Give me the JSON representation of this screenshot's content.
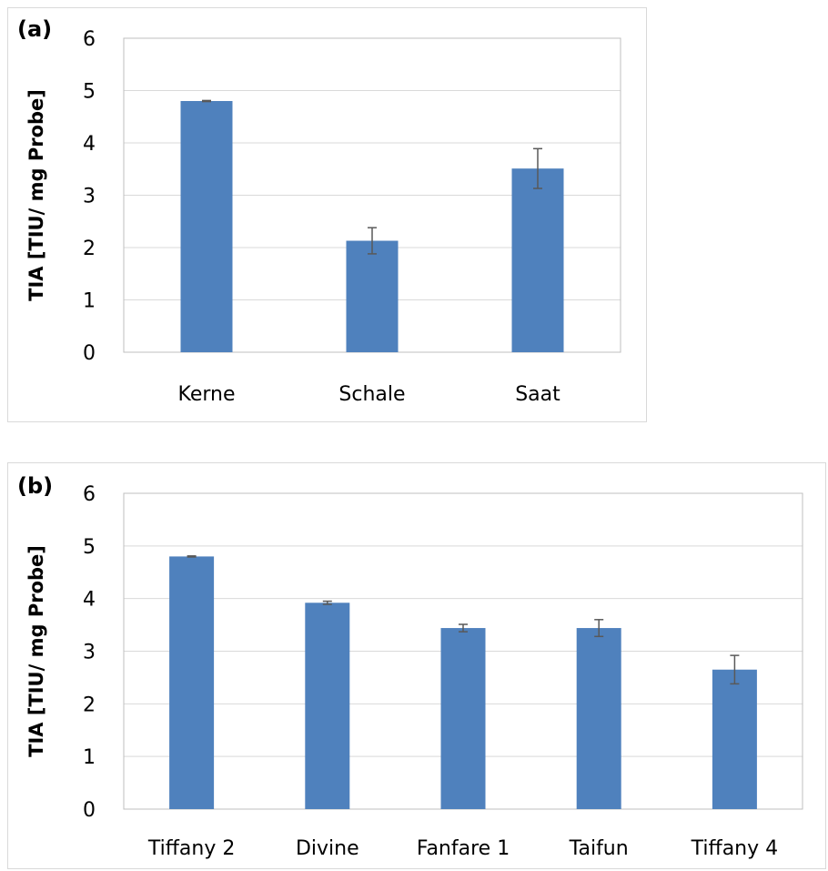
{
  "chart_data": [
    {
      "type": "bar",
      "panel_label": "(a)",
      "categories": [
        "Kerne",
        "Schale",
        "Saat"
      ],
      "values": [
        4.8,
        2.13,
        3.51
      ],
      "errors": [
        0.01,
        0.25,
        0.38
      ],
      "ylabel": "TIA [TIU/ mg Probe]",
      "xlabel": "",
      "ylim": [
        0,
        6
      ],
      "yticks": [
        "0",
        "1",
        "2",
        "3",
        "4",
        "5",
        "6"
      ],
      "grid": true,
      "bar_color": "#4f81bd",
      "error_color": "#595959"
    },
    {
      "type": "bar",
      "panel_label": "(b)",
      "categories": [
        "Tiffany 2",
        "Divine",
        "Fanfare 1",
        "Taifun",
        "Tiffany 4"
      ],
      "values": [
        4.8,
        3.92,
        3.44,
        3.44,
        2.65
      ],
      "errors": [
        0.01,
        0.03,
        0.07,
        0.16,
        0.27
      ],
      "ylabel": "TIA [TIU/ mg Probe]",
      "xlabel": "",
      "ylim": [
        0,
        6
      ],
      "yticks": [
        "0",
        "1",
        "2",
        "3",
        "4",
        "5",
        "6"
      ],
      "grid": true,
      "bar_color": "#4f81bd",
      "error_color": "#595959"
    }
  ]
}
